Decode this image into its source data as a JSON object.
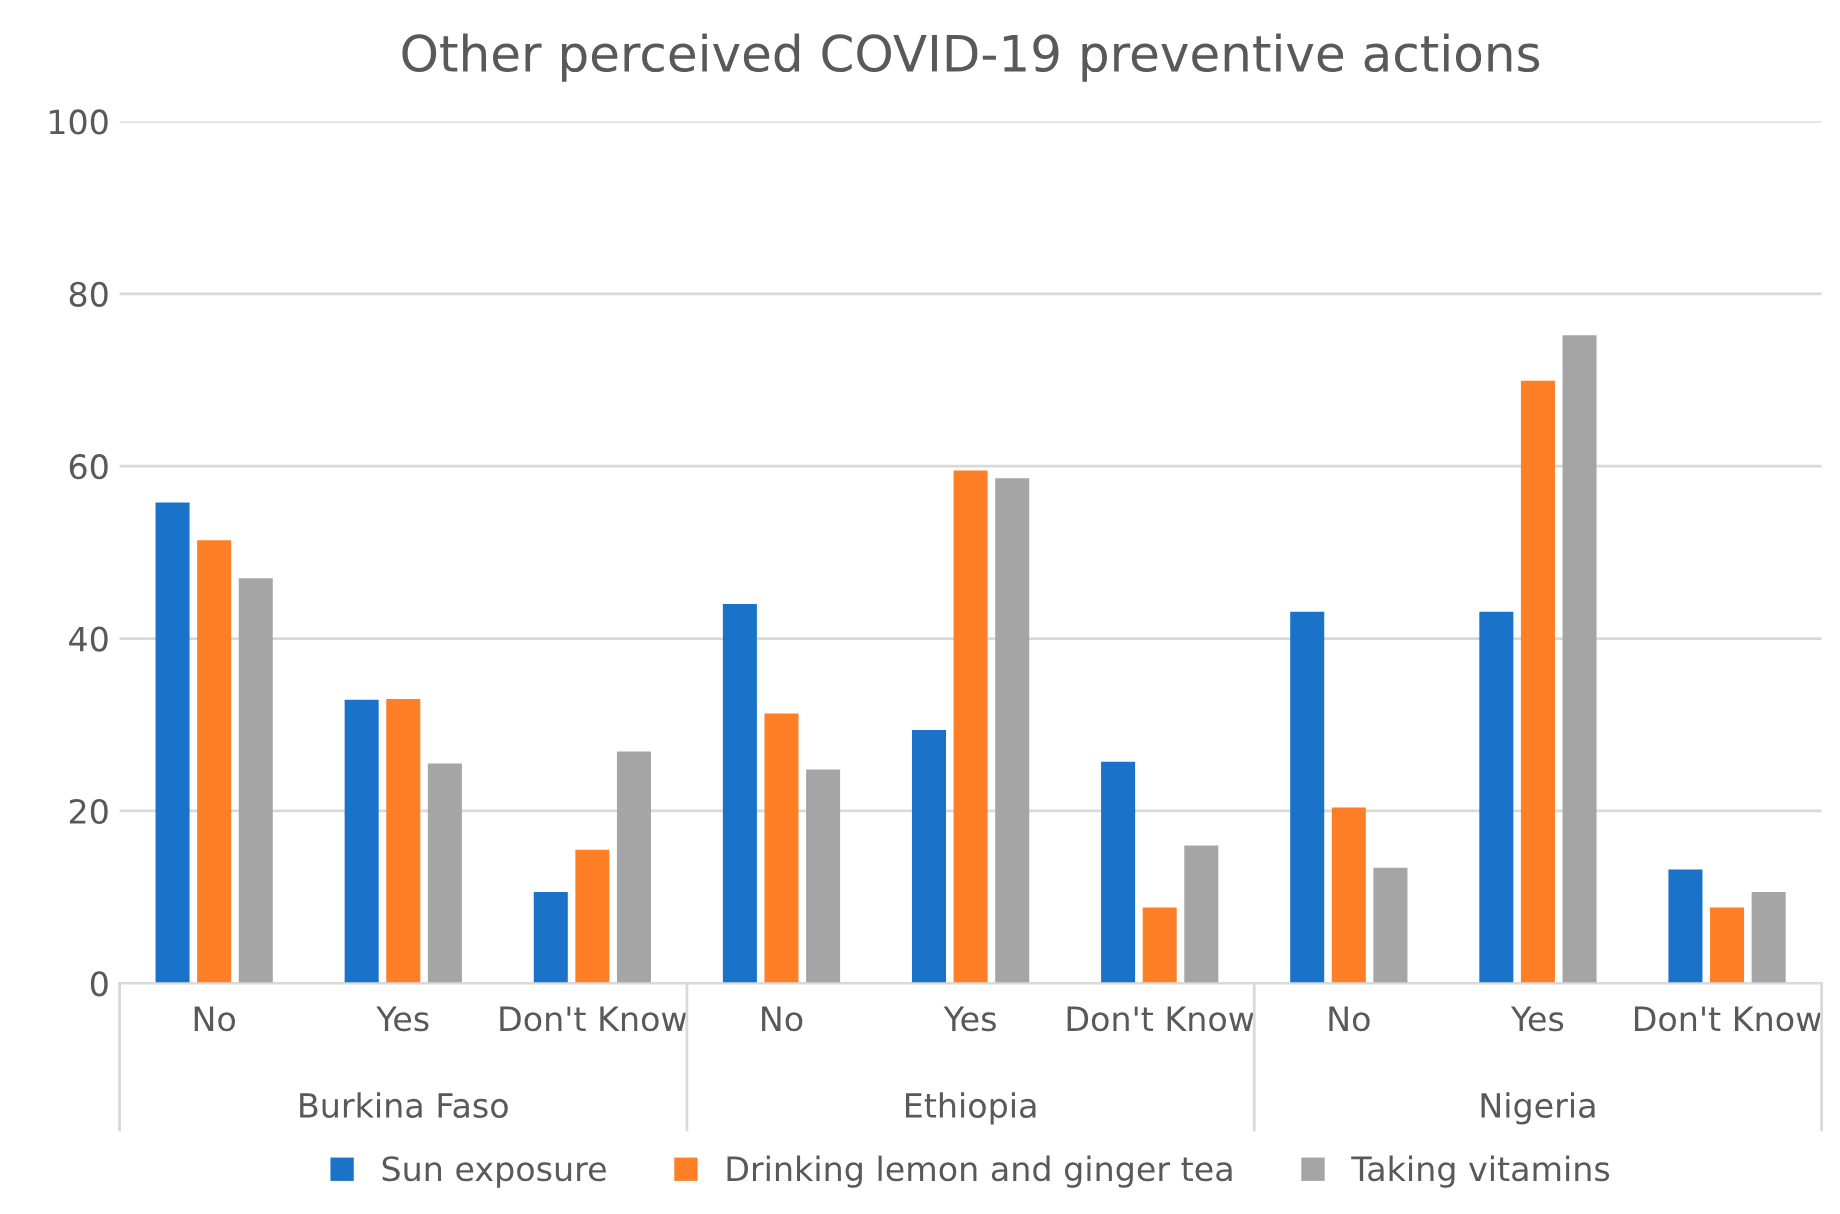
{
  "chart_data": {
    "type": "bar",
    "title": "Other perceived COVID-19 preventive actions",
    "categories": [
      "No",
      "Yes",
      "Don't Know",
      "No",
      "Yes",
      "Don't Know",
      "No",
      "Yes",
      "Don't Know"
    ],
    "annotations": [
      "Burkina Faso",
      "Ethiopia",
      "Nigeria"
    ],
    "series": [
      {
        "name": "Sun exposure",
        "color": "#1a73c8",
        "values": [
          55.8,
          32.9,
          10.6,
          44.0,
          29.4,
          25.7,
          43.1,
          43.1,
          13.2
        ]
      },
      {
        "name": "Drinking lemon and ginger tea",
        "color": "#ff7f27",
        "values": [
          51.4,
          33.0,
          15.5,
          31.3,
          59.5,
          8.8,
          20.4,
          69.9,
          8.8
        ]
      },
      {
        "name": "Taking vitamins",
        "color": "#a5a5a5",
        "values": [
          47.0,
          25.5,
          26.9,
          24.8,
          58.6,
          16.0,
          13.4,
          75.2,
          10.6
        ]
      }
    ],
    "ylim": [
      0,
      100
    ],
    "yticks": [
      0,
      20,
      40,
      60,
      80,
      100
    ],
    "grid": "y",
    "legend": "bottom"
  }
}
